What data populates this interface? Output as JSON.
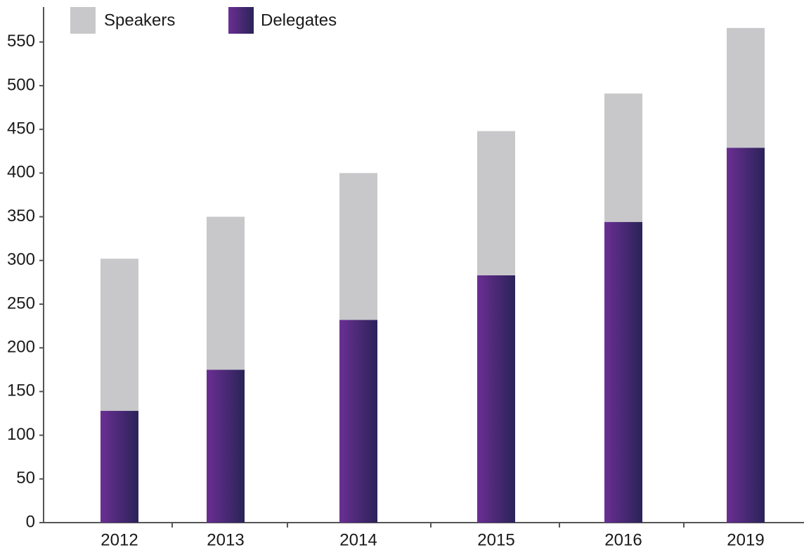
{
  "chart_data": {
    "type": "stacked_bar",
    "categories": [
      "2012",
      "2013",
      "2014",
      "2015",
      "2016",
      "2019"
    ],
    "series": [
      {
        "name": "Speakers",
        "color": "#c8c8ca",
        "values": [
          174,
          175,
          168,
          165,
          147,
          137
        ]
      },
      {
        "name": "Delegates",
        "color": "#6a2f93",
        "values": [
          128,
          175,
          232,
          283,
          344,
          429
        ]
      }
    ],
    "ylim": [
      0,
      590
    ],
    "yticks": [
      0,
      50,
      100,
      150,
      200,
      250,
      300,
      350,
      400,
      450,
      500,
      550
    ],
    "legend": "top"
  }
}
